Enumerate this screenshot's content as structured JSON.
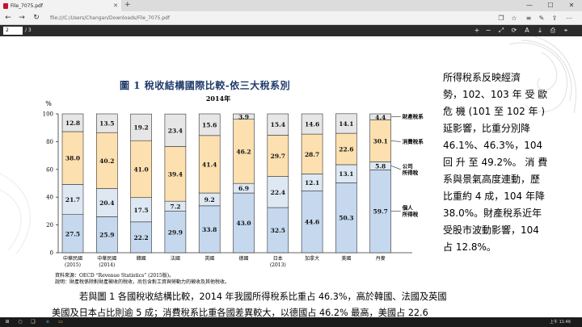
{
  "browser": {
    "tab_title": "File_7075.pdf",
    "tab_close": "✕",
    "new_tab": "+",
    "url": "file:///C:/Users/Changan/Downloads/File_7075.pdf",
    "back": "←",
    "forward": "→",
    "refresh": "↻",
    "reading_view": "❐",
    "favorite": "☆",
    "hub": "≡",
    "notes": "✎",
    "share": "⇪",
    "more": "⋯",
    "minimize": "—",
    "maximize": "☐",
    "close": "✕"
  },
  "pdf_toolbar": {
    "page_current": "2",
    "page_total": "/ 3",
    "zoom_in": "+",
    "zoom_out": "−",
    "fit": "⤢",
    "rotate": "⟳",
    "read_aloud": "A",
    "save": "⤓",
    "print": "⎙",
    "pin": "⌖"
  },
  "document": {
    "chart_title": "圖 1 稅收結構國際比較-依三大稅系別",
    "chart_subtitle": "2014年",
    "source_line1": "資料來源：OECD “Revenue Statistics” (2015版)。",
    "source_line2": "說明：財產稅係除對財產徵收的稅收，尚包含對工資與勞動力的徵收及其他稅收。",
    "side_text": [
      "所得稅系反映經濟",
      "勢，102、103 年 受 歐",
      "危 機 (101 至 102 年 )",
      "延影響，比重分別降",
      "46.1%、46.3%，104",
      "回 升 至 49.2%。 消 費",
      "系與景氣高度連動，歷",
      "比重約 4 成，104 年降",
      "38.0%。財產稅系近年",
      "受股市波動影響，104",
      "占 12.8%。"
    ],
    "para_line1": "若與圖 1 各國稅收結構比較，2014 年我國所得稅系比重占 46.3%，高於韓國、法國及英國",
    "para_line2": "美國及日本占比則逾 5 成；消費稅系比重各國差異較大，以德國占 46.2% 最高，美國占 22.6"
  },
  "chart_data": {
    "type": "bar",
    "stacked": true,
    "ylabel": "%",
    "ylim": [
      0,
      100
    ],
    "yticks": [
      "0",
      "20",
      "40",
      "60",
      "80",
      "100"
    ],
    "categories": [
      [
        "中華民國",
        "(2015)"
      ],
      [
        "中華民國",
        "(2014)"
      ],
      [
        "韓國"
      ],
      [
        "法國"
      ],
      [
        "英國"
      ],
      [
        "德國"
      ],
      [
        "日本",
        "(2013)"
      ],
      [
        "加拿大"
      ],
      [
        "美國"
      ],
      [
        "丹麥"
      ]
    ],
    "series": [
      {
        "name": "個人所得稅",
        "color": "#c5d8ee",
        "values": [
          27.5,
          25.9,
          22.2,
          29.9,
          33.8,
          43.0,
          32.5,
          44.6,
          50.3,
          59.7
        ]
      },
      {
        "name": "公司所得稅",
        "color": "#dde8f3",
        "values": [
          21.7,
          20.4,
          17.5,
          7.2,
          9.2,
          6.9,
          22.4,
          12.1,
          13.1,
          5.8
        ]
      },
      {
        "name": "消費稅系",
        "color": "#fce0b0",
        "values": [
          38.0,
          40.2,
          41.0,
          39.4,
          41.4,
          46.2,
          29.7,
          28.7,
          22.6,
          30.1
        ]
      },
      {
        "name": "財產稅系",
        "color": "#e6e6e6",
        "values": [
          12.8,
          13.5,
          19.2,
          23.4,
          15.6,
          3.9,
          15.4,
          14.6,
          14.1,
          4.4
        ]
      }
    ],
    "labels": [
      {
        "name": "個人所得稅",
        "values": [
          "27.5",
          "25.9",
          "22.2",
          "29.9",
          "33.8",
          "43.0",
          "32.5",
          "44.6",
          "50.3",
          "59.7"
        ]
      },
      {
        "name": "公司所得稅",
        "values": [
          "21.7",
          "20.4",
          "17.5",
          "7.2",
          "9.2",
          "6.9",
          "22.4",
          "12.1",
          "13.1",
          "5.8"
        ]
      },
      {
        "name": "消費稅系",
        "values": [
          "38.0",
          "40.2",
          "41.0",
          "39.4",
          "41.4",
          "46.2",
          "29.7",
          "28.7",
          "22.6",
          "30.1"
        ]
      },
      {
        "name": "財產稅系",
        "values": [
          "12.8",
          "13.5",
          "19.2",
          "23.4",
          "15.6",
          "3.9",
          "15.4",
          "14.6",
          "14.1",
          "4.4"
        ]
      }
    ],
    "legend_labels": [
      [
        "財產稅系"
      ],
      [
        "消費稅系"
      ],
      [
        "公司",
        "所得稅"
      ],
      [
        "個人",
        "所得稅"
      ]
    ],
    "legend_placement": "right",
    "grid": false
  },
  "taskbar": {
    "start": "⊞",
    "search": "○",
    "task_view": "❑",
    "edge": "e",
    "explorer": "▭",
    "time": "上午 11:46"
  }
}
